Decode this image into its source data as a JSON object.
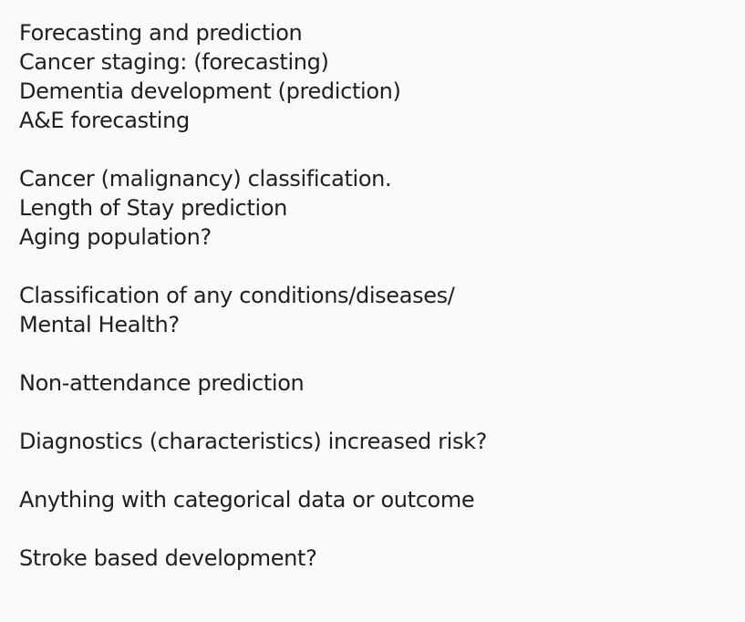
{
  "lines": [
    "Forecasting and prediction",
    "Cancer staging: (forecasting)",
    "Dementia development (prediction)",
    "A&E forecasting",
    "",
    "Cancer (malignancy) classification.",
    "Length of Stay prediction",
    "Aging population?",
    "",
    "Classification of any conditions/diseases/",
    "Mental Health?",
    "",
    "Non-attendance prediction",
    "",
    "Diagnostics (characteristics) increased risk?",
    "",
    "Anything with categorical data or outcome",
    "",
    "Stroke based development?"
  ]
}
